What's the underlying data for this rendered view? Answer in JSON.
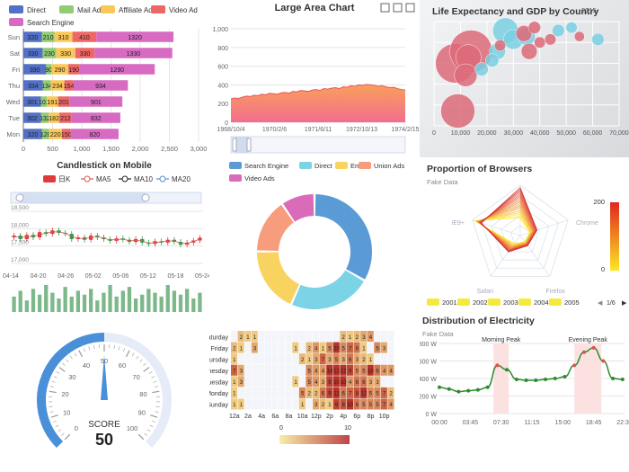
{
  "chart_data": [
    {
      "id": "stacked-bar",
      "type": "bar",
      "orientation": "horizontal",
      "stacked": true,
      "categories": [
        "Mon",
        "Tue",
        "Wed",
        "Thu",
        "Fri",
        "Sat",
        "Sun"
      ],
      "series": [
        {
          "name": "Direct",
          "color": "#5470c6",
          "values": [
            320,
            302,
            301,
            334,
            390,
            330,
            320
          ]
        },
        {
          "name": "Mail Ad",
          "color": "#91cc75",
          "values": [
            120,
            132,
            101,
            134,
            90,
            230,
            210
          ]
        },
        {
          "name": "Affiliate Ad",
          "color": "#fac858",
          "values": [
            220,
            182,
            191,
            234,
            290,
            330,
            310
          ]
        },
        {
          "name": "Video Ad",
          "color": "#ee6666",
          "values": [
            150,
            212,
            201,
            154,
            190,
            330,
            410
          ]
        },
        {
          "name": "Search Engine",
          "color": "#d66bc1",
          "values": [
            820,
            832,
            901,
            934,
            1290,
            1330,
            1320
          ]
        }
      ],
      "xlim": [
        0,
        3000
      ],
      "xticks": [
        "0",
        "500",
        "1,000",
        "1,500",
        "2,000",
        "2,500",
        "3,000"
      ],
      "legend_position": "top"
    },
    {
      "id": "large-area",
      "type": "area",
      "title": "Large Area Chart",
      "ylim": [
        0,
        1000
      ],
      "yticks": [
        "0",
        "200",
        "400",
        "600",
        "800",
        "1,000"
      ],
      "xticks": [
        "1968/10/4",
        "1970/2/6",
        "1971/6/11",
        "1972/10/13",
        "1974/2/15"
      ],
      "values": [
        250,
        260,
        255,
        270,
        280,
        275,
        290,
        285,
        300,
        295,
        310,
        305,
        300,
        315,
        320,
        310,
        330,
        325,
        340,
        335,
        330,
        345,
        350,
        340,
        360,
        355,
        365,
        370,
        360,
        380,
        375,
        390,
        385,
        400,
        395,
        405,
        400,
        395,
        385,
        390,
        380,
        370,
        375,
        360,
        350,
        345
      ],
      "has_data_zoom": true,
      "grid": true
    },
    {
      "id": "life-expectancy",
      "type": "scatter",
      "title": "Life Expectancy and GDP by Country",
      "year_label": "2015",
      "xlim": [
        0,
        70000
      ],
      "xticks": [
        "0",
        "10,000",
        "20,000",
        "30,000",
        "40,000",
        "50,000",
        "60,000",
        "70,000"
      ],
      "bubbles": [
        {
          "x": 8000,
          "y": 76,
          "size": 120,
          "color": "#dd6b7a"
        },
        {
          "x": 14000,
          "y": 80,
          "size": 140,
          "color": "#dd6b7a"
        },
        {
          "x": 9000,
          "y": 60,
          "size": 90,
          "color": "#dd6b7a"
        },
        {
          "x": 13000,
          "y": 78,
          "size": 50,
          "color": "#dd6b7a"
        },
        {
          "x": 12000,
          "y": 72,
          "size": 40,
          "color": "#dd6b7a"
        },
        {
          "x": 27000,
          "y": 87,
          "size": 50,
          "color": "#7ad0e3"
        },
        {
          "x": 30000,
          "y": 84,
          "size": 30,
          "color": "#7ad0e3"
        },
        {
          "x": 24000,
          "y": 80,
          "size": 20,
          "color": "#7ad0e3"
        },
        {
          "x": 22000,
          "y": 77,
          "size": 14,
          "color": "#7ad0e3"
        },
        {
          "x": 35000,
          "y": 85,
          "size": 24,
          "color": "#7ad0e3"
        },
        {
          "x": 47000,
          "y": 87,
          "size": 12,
          "color": "#7ad0e3"
        },
        {
          "x": 52000,
          "y": 88,
          "size": 10,
          "color": "#7ad0e3"
        },
        {
          "x": 62000,
          "y": 84,
          "size": 12,
          "color": "#7ad0e3"
        },
        {
          "x": 34000,
          "y": 86,
          "size": 20,
          "color": "#dd6b7a"
        },
        {
          "x": 38000,
          "y": 88,
          "size": 12,
          "color": "#dd6b7a"
        },
        {
          "x": 40000,
          "y": 83,
          "size": 10,
          "color": "#dd6b7a"
        },
        {
          "x": 36000,
          "y": 80,
          "size": 20,
          "color": "#dd6b7a"
        },
        {
          "x": 44000,
          "y": 84,
          "size": 10,
          "color": "#dd6b7a"
        },
        {
          "x": 55000,
          "y": 85,
          "size": 8,
          "color": "#dd6b7a"
        },
        {
          "x": 18000,
          "y": 74,
          "size": 14,
          "color": "#7ad0e3"
        },
        {
          "x": 25000,
          "y": 82,
          "size": 10,
          "color": "#dd6b7a"
        }
      ]
    },
    {
      "id": "candlestick",
      "type": "line",
      "title": "Candlestick on Mobile",
      "legend": [
        "日K",
        "MA5",
        "MA10",
        "MA20"
      ],
      "yticks": [
        "17,000",
        "17,500",
        "18,000",
        "18,500"
      ],
      "ylim": [
        17000,
        18500
      ],
      "xticks": [
        "04-14",
        "04-20",
        "04-26",
        "05-02",
        "05-06",
        "05-12",
        "05-18",
        "05-24"
      ],
      "candles": [
        [
          17750,
          17800
        ],
        [
          17800,
          17700
        ],
        [
          17700,
          17820
        ],
        [
          17820,
          17750
        ],
        [
          17750,
          17900
        ],
        [
          17900,
          17850
        ],
        [
          17850,
          17950
        ],
        [
          17950,
          17880
        ],
        [
          17880,
          17850
        ],
        [
          17850,
          17700
        ],
        [
          17700,
          17750
        ],
        [
          17750,
          17680
        ],
        [
          17680,
          17800
        ],
        [
          17800,
          17750
        ],
        [
          17750,
          17700
        ],
        [
          17700,
          17650
        ],
        [
          17650,
          17720
        ],
        [
          17720,
          17680
        ],
        [
          17680,
          17620
        ],
        [
          17620,
          17700
        ],
        [
          17700,
          17600
        ],
        [
          17600,
          17560
        ],
        [
          17560,
          17640
        ],
        [
          17640,
          17600
        ],
        [
          17600,
          17680
        ],
        [
          17680,
          17620
        ],
        [
          17620,
          17540
        ],
        [
          17540,
          17600
        ],
        [
          17600,
          17660
        ],
        [
          17660,
          17740
        ]
      ],
      "volumes": [
        40,
        55,
        30,
        60,
        45,
        70,
        50,
        35,
        65,
        40,
        55,
        45,
        60,
        30,
        50,
        70,
        40,
        55,
        65,
        35,
        45,
        60,
        50,
        40,
        70,
        55,
        45,
        60,
        35,
        50
      ]
    },
    {
      "id": "donut",
      "type": "pie",
      "donut": true,
      "legend": [
        "Search Engine",
        "Direct",
        "Email",
        "Union Ads",
        "Video Ads"
      ],
      "slices": [
        {
          "name": "Search Engine",
          "value": 1048,
          "color": "#5b9bd5"
        },
        {
          "name": "Direct",
          "value": 735,
          "color": "#7dd3e6"
        },
        {
          "name": "Email",
          "value": 580,
          "color": "#f8d35f"
        },
        {
          "name": "Union Ads",
          "value": 484,
          "color": "#f79c7c"
        },
        {
          "name": "Video Ads",
          "value": 300,
          "color": "#d96bb8"
        }
      ]
    },
    {
      "id": "radar",
      "type": "line",
      "title": "Proportion of Browsers",
      "subtitle": "Fake Data",
      "indicators": [
        "IE8-",
        "IE9+",
        "Safari",
        "Firefox",
        "Chrome"
      ],
      "visual_map_max": "200",
      "visual_map_min": "0",
      "years": [
        "2001",
        "2002",
        "2003",
        "2004",
        "2005"
      ],
      "page_label": "1/6"
    },
    {
      "id": "gauge",
      "type": "line",
      "value": 50,
      "label": "SCORE",
      "ticks": [
        "0",
        "10",
        "20",
        "30",
        "40",
        "50",
        "60",
        "70",
        "80",
        "90",
        "100"
      ]
    },
    {
      "id": "heatmap",
      "type": "heatmap",
      "days": [
        "Saturday",
        "Friday",
        "Thursday",
        "Wednesday",
        "Tuesday",
        "Monday",
        "Sunday"
      ],
      "hours": [
        "12a",
        "2a",
        "4a",
        "6a",
        "8a",
        "10a",
        "12p",
        "2p",
        "4p",
        "6p",
        "8p",
        "10p"
      ],
      "visual_map_min": "0",
      "visual_map_max": "10",
      "rows": [
        [
          0,
          2,
          1,
          1,
          0,
          0,
          0,
          0,
          0,
          0,
          0,
          0,
          0,
          0,
          0,
          0,
          2,
          1,
          2,
          3,
          4,
          0,
          0,
          0
        ],
        [
          2,
          1,
          0,
          3,
          0,
          0,
          0,
          0,
          0,
          1,
          0,
          2,
          4,
          1,
          5,
          10,
          5,
          7,
          6,
          1,
          0,
          5,
          3,
          0
        ],
        [
          1,
          0,
          0,
          0,
          0,
          0,
          0,
          0,
          0,
          0,
          2,
          1,
          3,
          7,
          3,
          5,
          3,
          6,
          3,
          2,
          1,
          0,
          0,
          0
        ],
        [
          7,
          3,
          0,
          0,
          0,
          0,
          0,
          0,
          0,
          0,
          0,
          5,
          4,
          4,
          14,
          13,
          12,
          9,
          5,
          5,
          10,
          6,
          4,
          4
        ],
        [
          1,
          3,
          0,
          0,
          0,
          0,
          0,
          0,
          0,
          1,
          0,
          5,
          4,
          3,
          9,
          10,
          10,
          4,
          6,
          6,
          3,
          3,
          0,
          0
        ],
        [
          1,
          0,
          0,
          0,
          0,
          0,
          0,
          0,
          0,
          0,
          5,
          2,
          2,
          6,
          9,
          11,
          6,
          7,
          8,
          12,
          5,
          5,
          7,
          2
        ],
        [
          1,
          1,
          0,
          0,
          0,
          0,
          0,
          0,
          0,
          0,
          1,
          0,
          3,
          2,
          1,
          9,
          8,
          10,
          6,
          5,
          5,
          5,
          7,
          4
        ]
      ]
    },
    {
      "id": "electricity",
      "type": "line",
      "title": "Distribution of Electricity",
      "subtitle": "Fake Data",
      "ylim": [
        0,
        800
      ],
      "yticks": [
        "0 W",
        "200 W",
        "400 W",
        "600 W",
        "800 W"
      ],
      "xticks": [
        "00:00",
        "03:45",
        "07:30",
        "11:15",
        "15:00",
        "18:45",
        "22:30"
      ],
      "x_hours": [
        0,
        1.25,
        2.5,
        3.75,
        5,
        6.25,
        7.5,
        8.75,
        10,
        11.25,
        12.5,
        13.75,
        15,
        16.25,
        17.5,
        18.75,
        20,
        21.25,
        22.5,
        23.75
      ],
      "values": [
        300,
        280,
        250,
        260,
        270,
        300,
        550,
        500,
        390,
        380,
        380,
        390,
        400,
        420,
        550,
        700,
        750,
        600,
        400,
        390
      ],
      "mark_areas": [
        {
          "name": "Morning Peak",
          "from": 7,
          "to": 9
        },
        {
          "name": "Evening Peak",
          "from": 17.5,
          "to": 21
        }
      ]
    }
  ]
}
